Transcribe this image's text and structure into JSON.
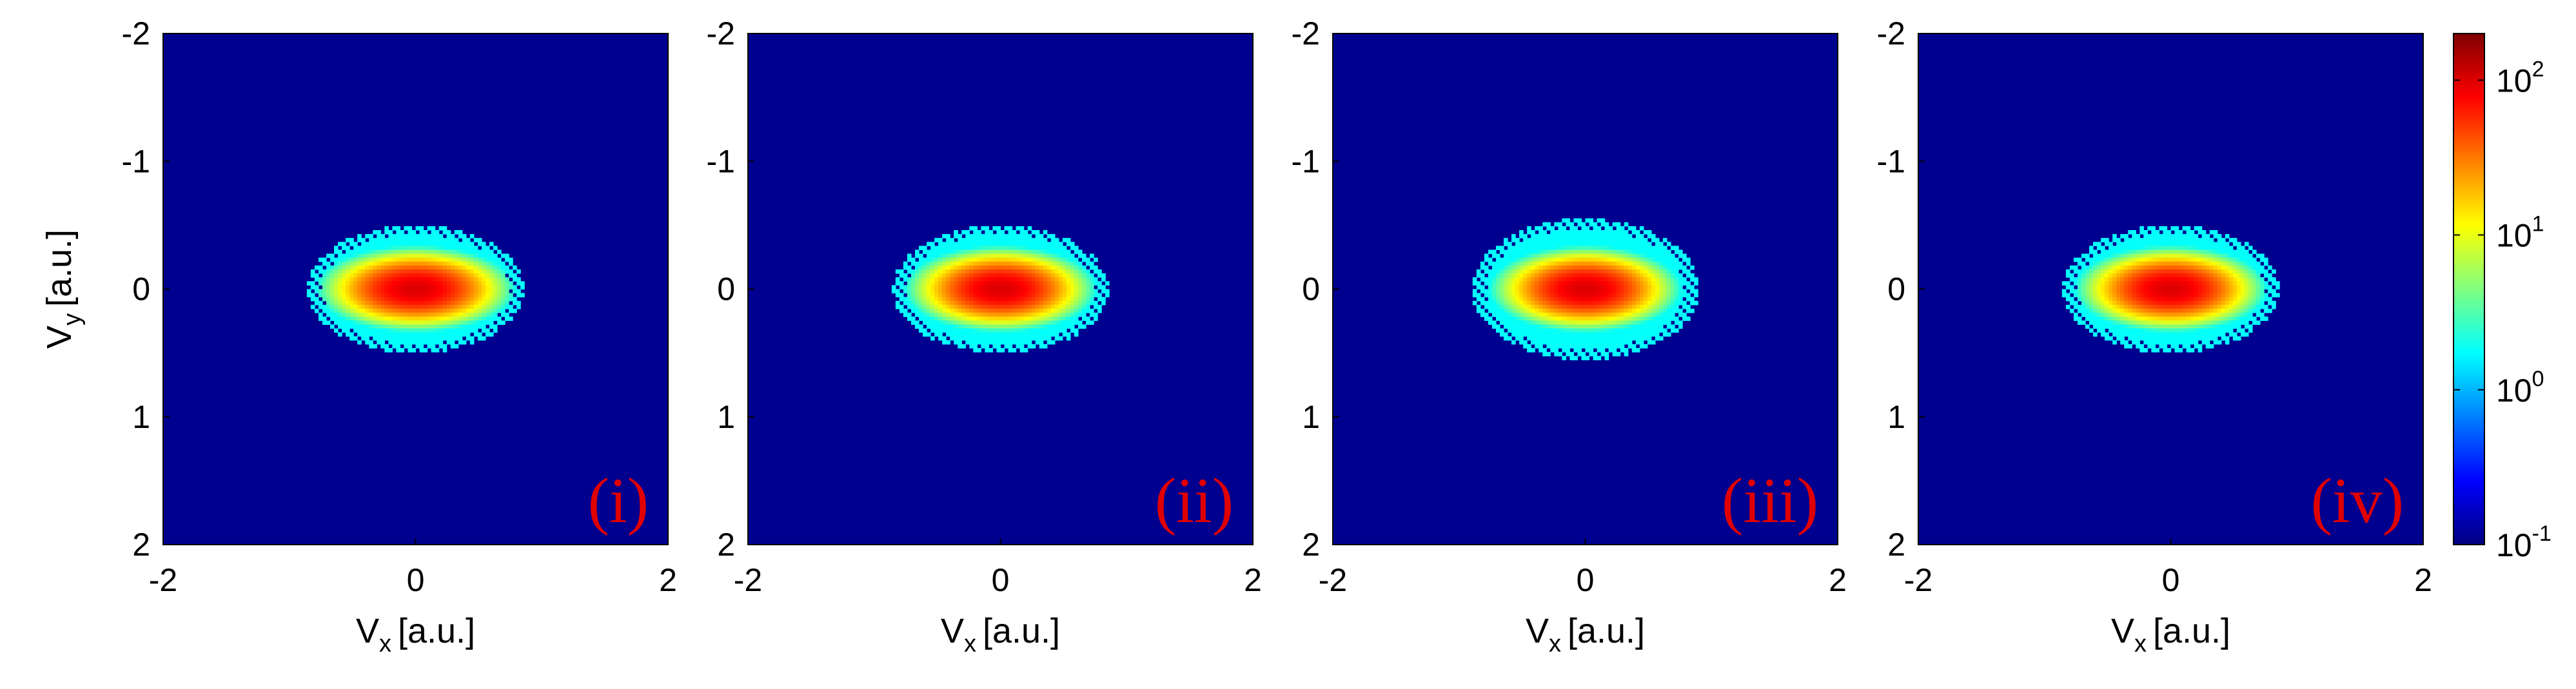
{
  "figure": {
    "colormap": "jet",
    "background_color": "#00008f",
    "panel_tag_color": "#e00000"
  },
  "chart_data": [
    {
      "type": "heatmap",
      "panel_tag": "(i)",
      "xlabel_main": "V",
      "xlabel_sub": "x",
      "xlabel_unit": "[a.u.]",
      "ylabel_main": "V",
      "ylabel_sub": "y",
      "ylabel_unit": "[a.u.]",
      "xlim": [
        -2,
        2
      ],
      "ylim": [
        -2,
        2
      ],
      "y_reversed": true,
      "xticks": [
        "-2",
        "0",
        "2"
      ],
      "yticks": [
        "-2",
        "-1",
        "0",
        "1",
        "2"
      ],
      "distribution": {
        "center": [
          0,
          0
        ],
        "sigma_x": 0.28,
        "sigma_y": 0.12,
        "half_width_x": 0.85,
        "half_height_y": 0.5,
        "peak": 100
      }
    },
    {
      "type": "heatmap",
      "panel_tag": "(ii)",
      "xlabel_main": "V",
      "xlabel_sub": "x",
      "xlabel_unit": "[a.u.]",
      "xlim": [
        -2,
        2
      ],
      "ylim": [
        -2,
        2
      ],
      "y_reversed": true,
      "xticks": [
        "-2",
        "0",
        "2"
      ],
      "yticks": [
        "-2",
        "-1",
        "0",
        "1",
        "2"
      ],
      "distribution": {
        "center": [
          0,
          0
        ],
        "sigma_x": 0.27,
        "sigma_y": 0.12,
        "half_width_x": 0.85,
        "half_height_y": 0.5,
        "peak": 100
      }
    },
    {
      "type": "heatmap",
      "panel_tag": "(iii)",
      "xlabel_main": "V",
      "xlabel_sub": "x",
      "xlabel_unit": "[a.u.]",
      "xlim": [
        -2,
        2
      ],
      "ylim": [
        -2,
        2
      ],
      "y_reversed": true,
      "xticks": [
        "-2",
        "0",
        "2"
      ],
      "yticks": [
        "-2",
        "-1",
        "0",
        "1",
        "2"
      ],
      "distribution": {
        "center": [
          0,
          0
        ],
        "sigma_x": 0.27,
        "sigma_y": 0.12,
        "half_width_x": 0.9,
        "half_height_y": 0.55,
        "peak": 100
      }
    },
    {
      "type": "heatmap",
      "panel_tag": "(iv)",
      "xlabel_main": "V",
      "xlabel_sub": "x",
      "xlabel_unit": "[a.u.]",
      "xlim": [
        -2,
        2
      ],
      "ylim": [
        -2,
        2
      ],
      "y_reversed": true,
      "xticks": [
        "-2",
        "0",
        "2"
      ],
      "yticks": [
        "-2",
        "-1",
        "0",
        "1",
        "2"
      ],
      "distribution": {
        "center": [
          0,
          0
        ],
        "sigma_x": 0.27,
        "sigma_y": 0.12,
        "half_width_x": 0.85,
        "half_height_y": 0.5,
        "peak": 100
      }
    }
  ],
  "colorbar": {
    "scale": "log",
    "range": [
      0.1,
      200
    ],
    "tick_values": [
      0.1,
      1,
      10,
      100
    ],
    "ticks": [
      {
        "base": "10",
        "exp": "-1"
      },
      {
        "base": "10",
        "exp": "0"
      },
      {
        "base": "10",
        "exp": "1"
      },
      {
        "base": "10",
        "exp": "2"
      }
    ]
  }
}
